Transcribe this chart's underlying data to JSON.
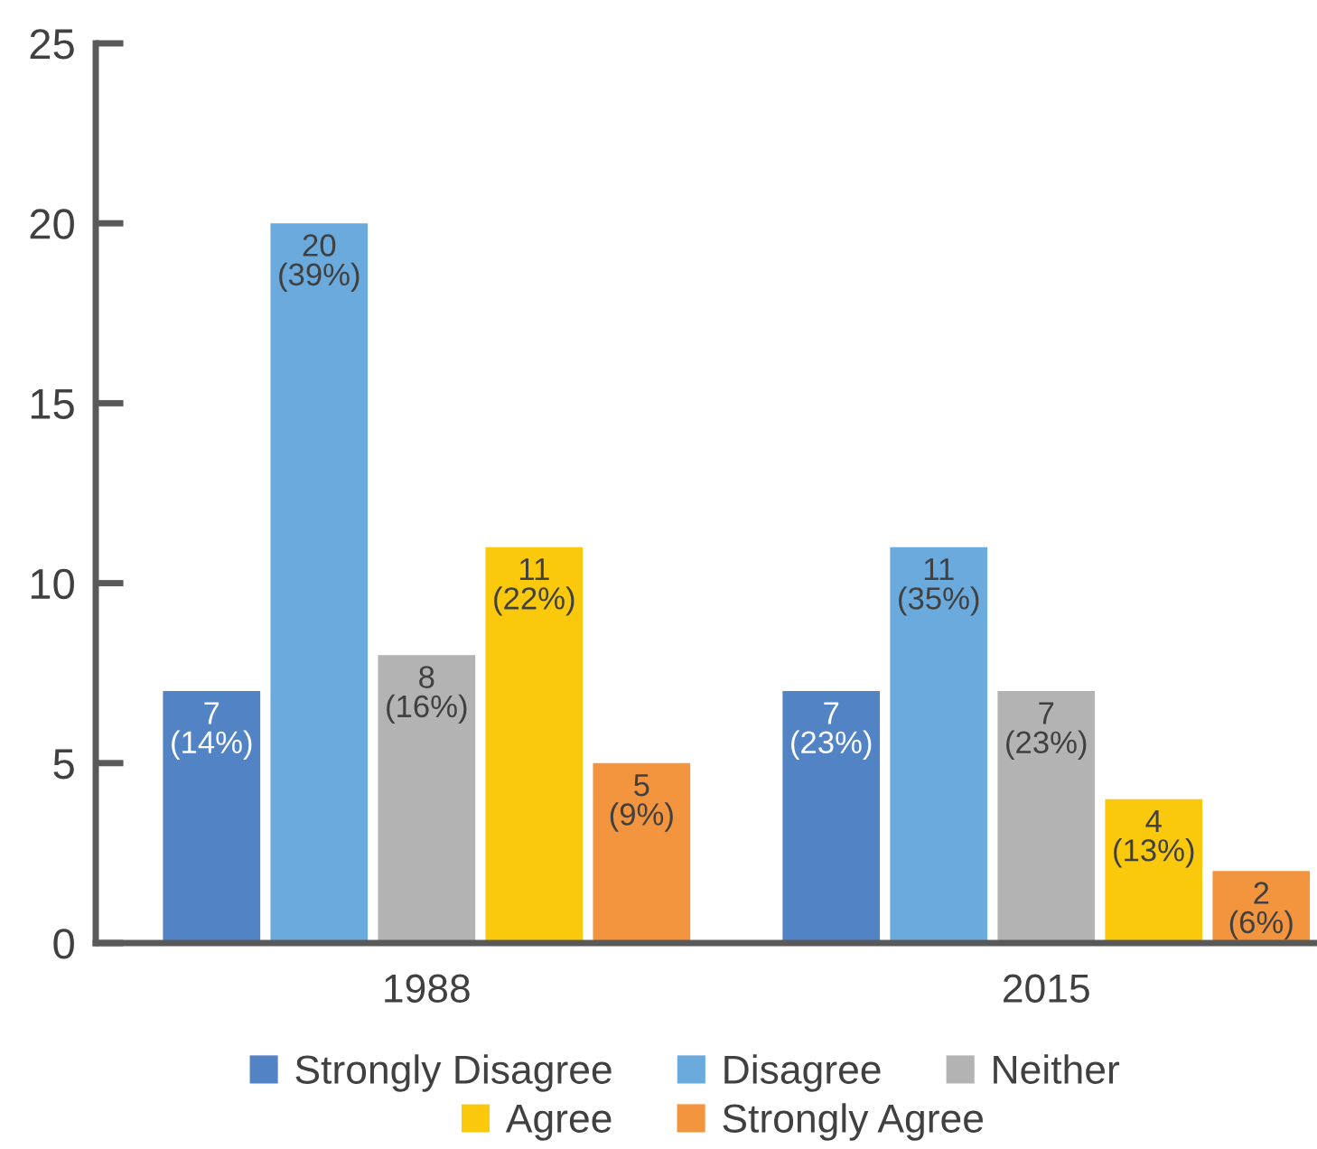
{
  "chart_data": {
    "type": "bar",
    "categories": [
      "1988",
      "2015"
    ],
    "series": [
      {
        "name": "Strongly Disagree",
        "color": "#5283c5",
        "values": [
          7,
          7
        ],
        "value_labels": [
          "7\n(14%)",
          "7\n(23%)"
        ]
      },
      {
        "name": "Disagree",
        "color": "#6aaadd",
        "values": [
          20,
          11
        ],
        "value_labels": [
          "20\n(39%)",
          "11\n(35%)"
        ]
      },
      {
        "name": "Neither",
        "color": "#b3b3b3",
        "values": [
          8,
          7
        ],
        "value_labels": [
          "8\n(16%)",
          "7\n(23%)"
        ]
      },
      {
        "name": "Agree",
        "color": "#fbc90b",
        "values": [
          11,
          4
        ],
        "value_labels": [
          "11\n(22%)",
          "4\n(13%)"
        ]
      },
      {
        "name": "Strongly Agree",
        "color": "#f3943f",
        "values": [
          5,
          2
        ],
        "value_labels": [
          "5\n(9%)",
          "2\n(6%)"
        ]
      }
    ],
    "ylim": [
      0,
      25
    ],
    "yticks": [
      0,
      5,
      10,
      15,
      20,
      25
    ],
    "grid": false,
    "legend": "bottom"
  }
}
